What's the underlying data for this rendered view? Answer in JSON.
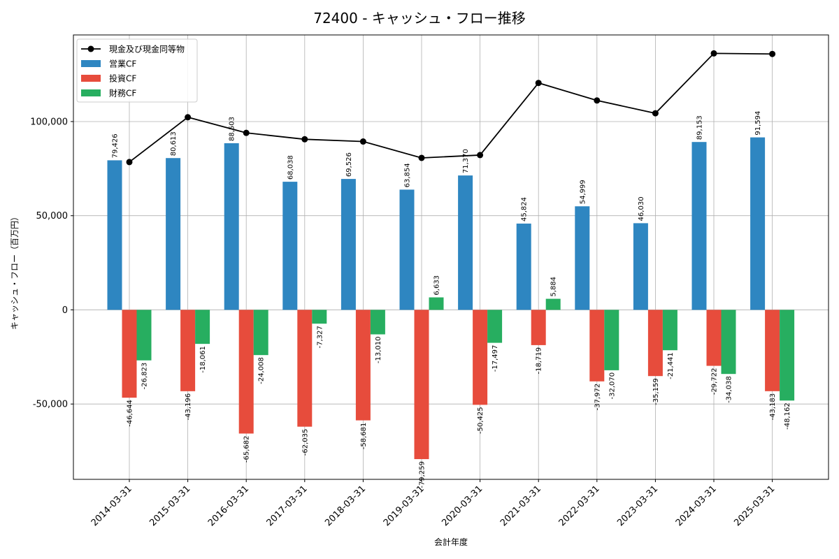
{
  "chart_data": {
    "type": "bar",
    "title": "72400 - キャッシュ・フロー推移",
    "xlabel": "会計年度",
    "ylabel": "キャッシュ・フロー（百万円）",
    "categories": [
      "2014-03-31",
      "2015-03-31",
      "2016-03-31",
      "2017-03-31",
      "2018-03-31",
      "2019-03-31",
      "2020-03-31",
      "2021-03-31",
      "2022-03-31",
      "2023-03-31",
      "2024-03-31",
      "2025-03-31"
    ],
    "series": [
      {
        "name": "営業CF",
        "kind": "bar",
        "color": "#2e86c1",
        "values": [
          79426,
          80613,
          88503,
          68038,
          69526,
          63854,
          71370,
          45824,
          54999,
          46030,
          89153,
          91594
        ],
        "labels": [
          "79,426",
          "80,613",
          "88,503",
          "68,038",
          "69,526",
          "63,854",
          "71,370",
          "45,824",
          "54,999",
          "46,030",
          "89,153",
          "91,594"
        ]
      },
      {
        "name": "投資CF",
        "kind": "bar",
        "color": "#e74c3c",
        "values": [
          -46644,
          -43196,
          -65682,
          -62035,
          -58681,
          -79259,
          -50425,
          -18719,
          -37972,
          -35159,
          -29722,
          -43183
        ],
        "labels": [
          "-46,644",
          "-43,196",
          "-65,682",
          "-62,035",
          "-58,681",
          "-79,259",
          "-50,425",
          "-18,719",
          "-37,972",
          "-35,159",
          "-29,722",
          "-43,183"
        ]
      },
      {
        "name": "財務CF",
        "kind": "bar",
        "color": "#27ae60",
        "values": [
          -26823,
          -18061,
          -24008,
          -7327,
          -13010,
          6633,
          -17497,
          5884,
          -32070,
          -21441,
          -34038,
          -48162
        ],
        "labels": [
          "-26,823",
          "-18,061",
          "-24,008",
          "-7,327",
          "-13,010",
          "6,633",
          "-17,497",
          "5,884",
          "-32,070",
          "-21,441",
          "-34,038",
          "-48,162"
        ]
      },
      {
        "name": "現金及び現金同等物",
        "kind": "line",
        "color": "#000000",
        "values": [
          78500,
          102300,
          94000,
          90600,
          89400,
          80700,
          82200,
          120500,
          111200,
          104400,
          136200,
          135900
        ]
      }
    ],
    "yticks": [
      -50000,
      0,
      50000,
      100000
    ],
    "ytick_labels": [
      "-50,000",
      "0",
      "50,000",
      "100,000"
    ],
    "ylim": [
      -90000,
      146000
    ],
    "grid": true,
    "legend": "top-left"
  }
}
